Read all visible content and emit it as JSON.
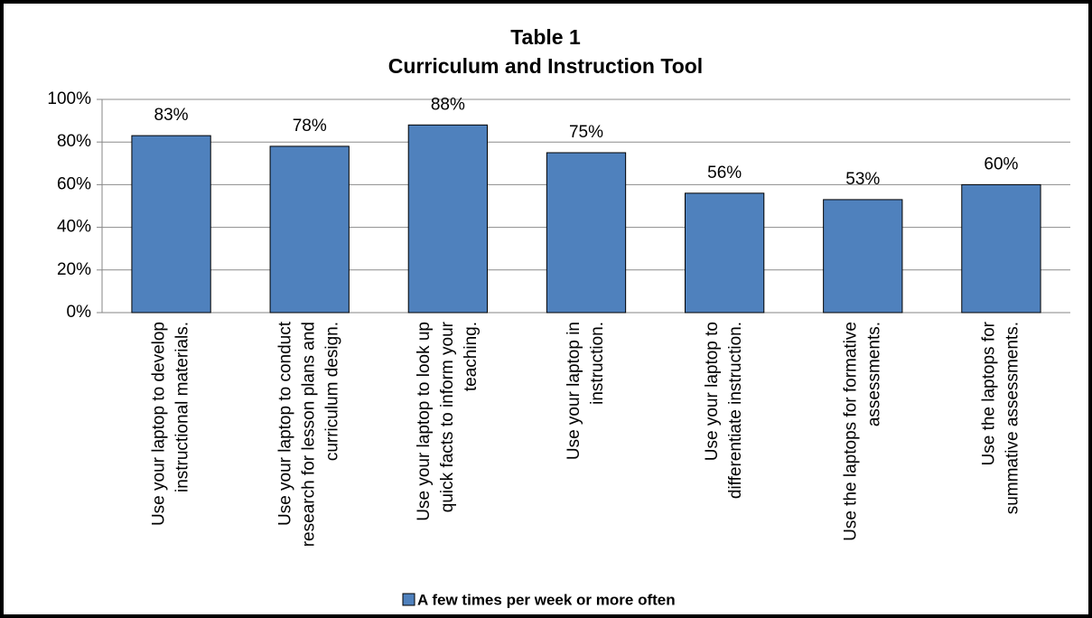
{
  "chart_data": {
    "type": "bar",
    "title": "Table 1",
    "subtitle": "Curriculum and Instruction Tool",
    "categories": [
      [
        "Use your laptop to develop",
        "instructional materials."
      ],
      [
        "Use your laptop to conduct",
        "research for lesson plans and",
        "curriculum design."
      ],
      [
        "Use your laptop to look up",
        "quick facts to inform your",
        "teaching."
      ],
      [
        "Use your laptop in",
        "instruction."
      ],
      [
        "Use your laptop to",
        "differentiate instruction."
      ],
      [
        "Use the laptops for formative",
        "assessments."
      ],
      [
        "Use the laptops for",
        "summative assessments."
      ]
    ],
    "series": [
      {
        "name": "A few times per week or more often",
        "color": "#4f81bd",
        "values": [
          83,
          78,
          88,
          75,
          56,
          53,
          60
        ],
        "value_labels": [
          "83%",
          "78%",
          "88%",
          "75%",
          "56%",
          "53%",
          "60%"
        ]
      }
    ],
    "ylim": [
      0,
      100
    ],
    "yticks": [
      {
        "value": 0,
        "label": "0%"
      },
      {
        "value": 20,
        "label": "20%"
      },
      {
        "value": 40,
        "label": "40%"
      },
      {
        "value": 60,
        "label": "60%"
      },
      {
        "value": 80,
        "label": "80%"
      },
      {
        "value": 100,
        "label": "100%"
      }
    ],
    "grid": true,
    "legend": "bottom"
  }
}
